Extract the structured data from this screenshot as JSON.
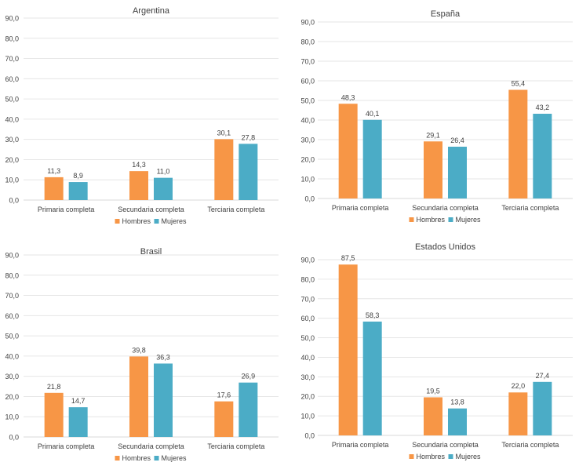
{
  "colors": {
    "hombres": "#F79646",
    "mujeres": "#4BACC6",
    "grid": "#e6e6e6"
  },
  "chart_data": [
    {
      "type": "bar",
      "title": "Argentina",
      "categories": [
        "Primaria completa",
        "Secundaria completa",
        "Terciaria completa"
      ],
      "series": [
        {
          "name": "Hombres",
          "values": [
            11.3,
            14.3,
            30.1
          ]
        },
        {
          "name": "Mujeres",
          "values": [
            8.9,
            11.0,
            27.8
          ]
        }
      ],
      "ylim": [
        0,
        90
      ],
      "yticks": [
        "0,0",
        "10,0",
        "20,0",
        "30,0",
        "40,0",
        "50,0",
        "60,0",
        "70,0",
        "80,0",
        "90,0"
      ],
      "labels": [
        [
          "11,3",
          "14,3",
          "30,1"
        ],
        [
          "8,9",
          "11,0",
          "27,8"
        ]
      ],
      "grid": true,
      "legend": "bottom"
    },
    {
      "type": "bar",
      "title": "España",
      "categories": [
        "Primaria completa",
        "Secundaria completa",
        "Terciaria completa"
      ],
      "series": [
        {
          "name": "Hombres",
          "values": [
            48.3,
            29.1,
            55.4
          ]
        },
        {
          "name": "Mujeres",
          "values": [
            40.1,
            26.4,
            43.2
          ]
        }
      ],
      "ylim": [
        0,
        90
      ],
      "yticks": [
        "0,0",
        "10,0",
        "20,0",
        "30,0",
        "40,0",
        "50,0",
        "60,0",
        "70,0",
        "80,0",
        "90,0"
      ],
      "labels": [
        [
          "48,3",
          "29,1",
          "55,4"
        ],
        [
          "40,1",
          "26,4",
          "43,2"
        ]
      ],
      "grid": true,
      "legend": "bottom"
    },
    {
      "type": "bar",
      "title": "Brasil",
      "categories": [
        "Primaria completa",
        "Secundaria completa",
        "Terciaria completa"
      ],
      "series": [
        {
          "name": "Hombres",
          "values": [
            21.8,
            39.8,
            17.6
          ]
        },
        {
          "name": "Mujeres",
          "values": [
            14.7,
            36.3,
            26.9
          ]
        }
      ],
      "ylim": [
        0,
        90
      ],
      "yticks": [
        "0,0",
        "10,0",
        "20,0",
        "30,0",
        "40,0",
        "50,0",
        "60,0",
        "70,0",
        "80,0",
        "90,0"
      ],
      "labels": [
        [
          "21,8",
          "39,8",
          "17,6"
        ],
        [
          "14,7",
          "36,3",
          "26,9"
        ]
      ],
      "grid": true,
      "legend": "bottom"
    },
    {
      "type": "bar",
      "title": "Estados Unidos",
      "categories": [
        "Primaria completa",
        "Secundaria completa",
        "Terciaria completa"
      ],
      "series": [
        {
          "name": "Hombres",
          "values": [
            87.5,
            19.5,
            22.0
          ]
        },
        {
          "name": "Mujeres",
          "values": [
            58.3,
            13.8,
            27.4
          ]
        }
      ],
      "ylim": [
        0,
        90
      ],
      "yticks": [
        "0,0",
        "10,0",
        "20,0",
        "30,0",
        "40,0",
        "50,0",
        "60,0",
        "70,0",
        "80,0",
        "90,0"
      ],
      "labels": [
        [
          "87,5",
          "19,5",
          "22,0"
        ],
        [
          "58,3",
          "13,8",
          "27,4"
        ]
      ],
      "grid": true,
      "legend": "bottom"
    }
  ]
}
